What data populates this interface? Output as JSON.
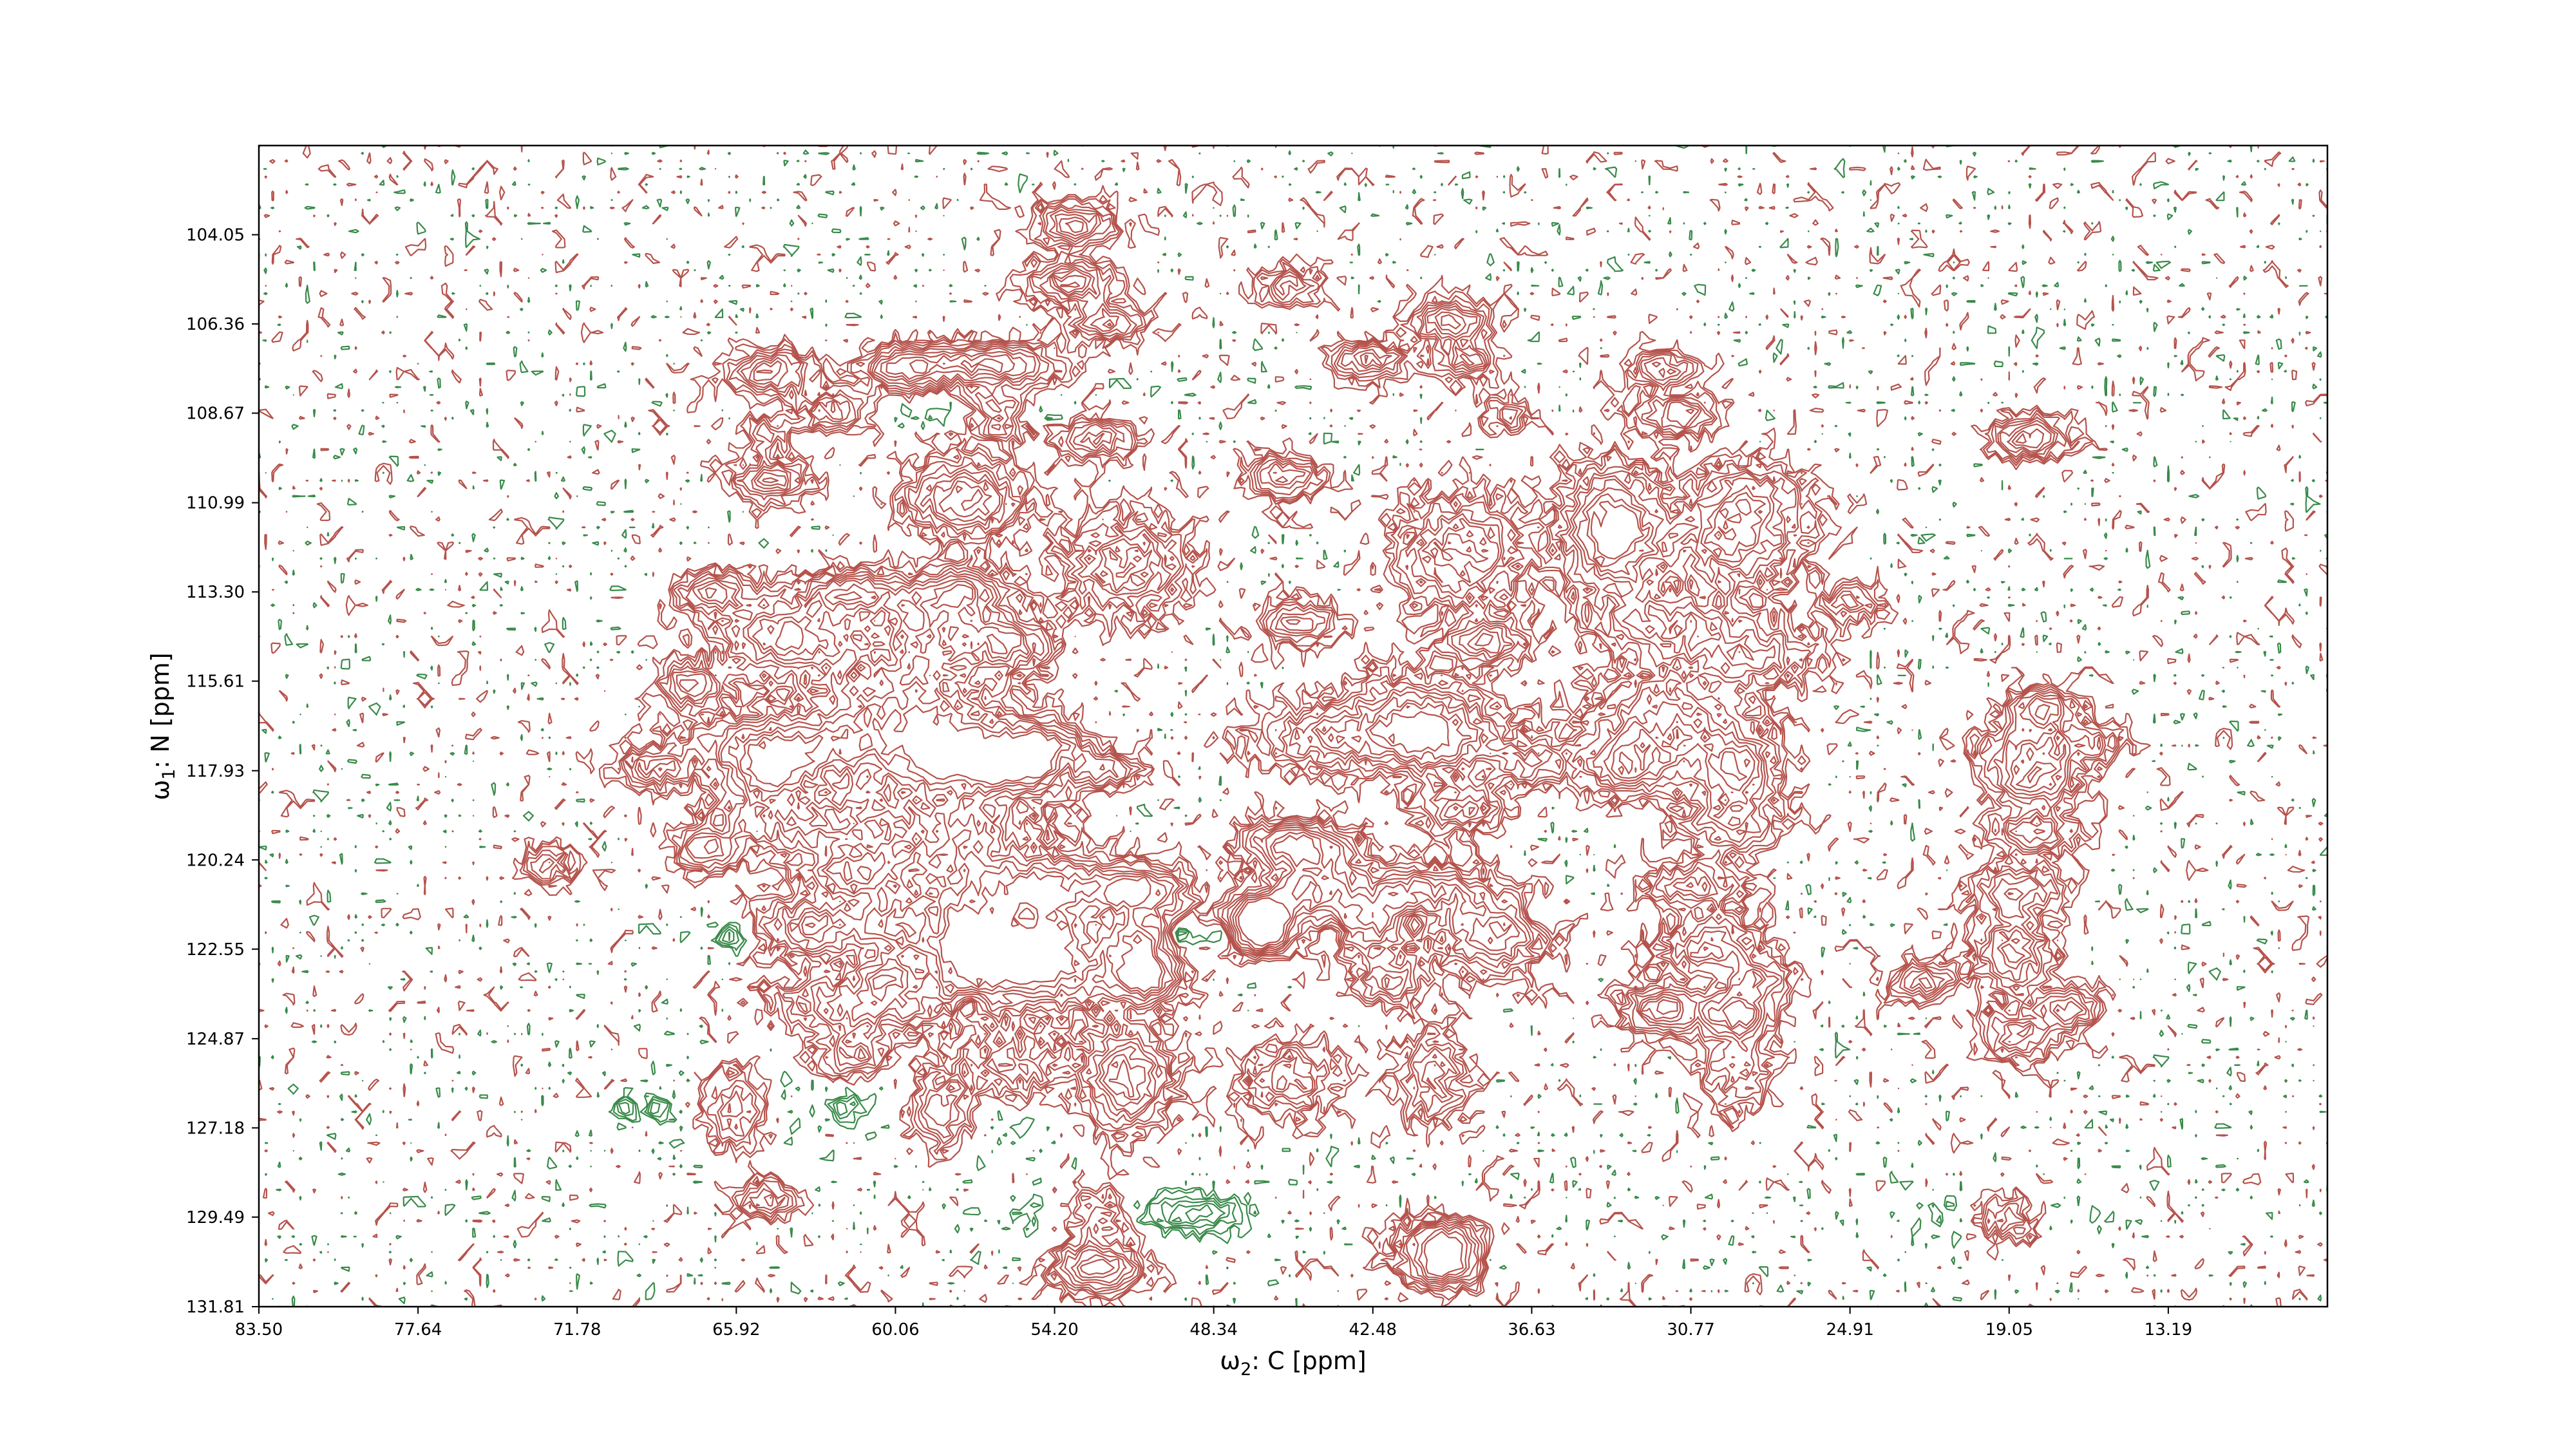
{
  "chart_data": {
    "type": "contour",
    "title": "",
    "xlabel_symbol": "ω",
    "xlabel_sub": "2",
    "xlabel_rest": ": C [ppm]",
    "ylabel_symbol": "ω",
    "ylabel_sub": "1",
    "ylabel_rest": ": N [ppm]",
    "xlim": [
      83.5,
      7.33
    ],
    "ylim": [
      131.81,
      101.74
    ],
    "x_ticks": [
      "83.50",
      "77.64",
      "71.78",
      "65.92",
      "60.06",
      "54.20",
      "48.34",
      "42.48",
      "36.63",
      "30.77",
      "24.91",
      "19.05",
      "13.19"
    ],
    "y_ticks": [
      "104.05",
      "106.36",
      "108.67",
      "110.99",
      "113.30",
      "115.61",
      "117.93",
      "120.24",
      "122.55",
      "124.87",
      "127.18",
      "129.49",
      "131.81"
    ],
    "colors": {
      "positive": "#b5534c",
      "negative": "#3a8a4a"
    },
    "peaks": [
      {
        "x": 53.4,
        "y": 103.8,
        "amp": 1.0,
        "sx": 0.9,
        "sy": 0.35
      },
      {
        "x": 53.6,
        "y": 105.3,
        "amp": 1.1,
        "sx": 1.0,
        "sy": 0.35
      },
      {
        "x": 52.2,
        "y": 106.3,
        "amp": 0.9,
        "sx": 0.8,
        "sy": 0.3
      },
      {
        "x": 39.6,
        "y": 106.3,
        "amp": 1.0,
        "sx": 0.9,
        "sy": 0.35
      },
      {
        "x": 45.6,
        "y": 105.4,
        "amp": 0.6,
        "sx": 0.8,
        "sy": 0.35
      },
      {
        "x": 64.6,
        "y": 107.6,
        "amp": 1.0,
        "sx": 1.0,
        "sy": 0.35
      },
      {
        "x": 59.7,
        "y": 107.5,
        "amp": 1.0,
        "sx": 1.0,
        "sy": 0.35
      },
      {
        "x": 56.6,
        "y": 107.4,
        "amp": 1.2,
        "sx": 1.6,
        "sy": 0.35
      },
      {
        "x": 42.6,
        "y": 107.3,
        "amp": 0.9,
        "sx": 0.9,
        "sy": 0.3
      },
      {
        "x": 39.1,
        "y": 107.3,
        "amp": 0.8,
        "sx": 0.8,
        "sy": 0.3
      },
      {
        "x": 31.8,
        "y": 107.5,
        "amp": 0.7,
        "sx": 0.8,
        "sy": 0.3
      },
      {
        "x": 56.3,
        "y": 108.7,
        "amp": 1.3,
        "sx": 1.0,
        "sy": 0.35
      },
      {
        "x": 56.3,
        "y": 108.7,
        "amp": -0.8,
        "sx": 1.6,
        "sy": 0.25
      },
      {
        "x": 62.4,
        "y": 108.6,
        "amp": 0.8,
        "sx": 0.9,
        "sy": 0.35
      },
      {
        "x": 52.7,
        "y": 109.3,
        "amp": 0.8,
        "sx": 1.0,
        "sy": 0.35
      },
      {
        "x": 64.8,
        "y": 109.2,
        "amp": 0.5,
        "sx": 0.6,
        "sy": 0.3
      },
      {
        "x": 31.2,
        "y": 108.7,
        "amp": 0.9,
        "sx": 0.9,
        "sy": 0.35
      },
      {
        "x": 37.6,
        "y": 108.7,
        "amp": 0.5,
        "sx": 0.6,
        "sy": 0.3
      },
      {
        "x": 18.3,
        "y": 109.3,
        "amp": 1.0,
        "sx": 0.9,
        "sy": 0.35
      },
      {
        "x": 64.6,
        "y": 110.4,
        "amp": 0.9,
        "sx": 0.9,
        "sy": 0.35
      },
      {
        "x": 57.5,
        "y": 110.9,
        "amp": 1.2,
        "sx": 1.3,
        "sy": 0.6
      },
      {
        "x": 45.8,
        "y": 110.3,
        "amp": 0.9,
        "sx": 0.9,
        "sy": 0.35
      },
      {
        "x": 39.2,
        "y": 112.3,
        "amp": 0.9,
        "sx": 1.5,
        "sy": 0.9
      },
      {
        "x": 33.6,
        "y": 111.7,
        "amp": 1.4,
        "sx": 1.1,
        "sy": 1.0
      },
      {
        "x": 29.2,
        "y": 111.9,
        "amp": 1.0,
        "sx": 1.6,
        "sy": 0.8
      },
      {
        "x": 28.6,
        "y": 110.7,
        "amp": 0.6,
        "sx": 1.2,
        "sy": 0.5
      },
      {
        "x": 51.6,
        "y": 112.6,
        "amp": 0.8,
        "sx": 1.4,
        "sy": 0.8
      },
      {
        "x": 66.8,
        "y": 113.3,
        "amp": 0.9,
        "sx": 0.9,
        "sy": 0.35
      },
      {
        "x": 61.6,
        "y": 113.3,
        "amp": 1.0,
        "sx": 1.4,
        "sy": 0.35
      },
      {
        "x": 57.7,
        "y": 113.3,
        "amp": 0.8,
        "sx": 0.9,
        "sy": 0.35
      },
      {
        "x": 64.1,
        "y": 114.4,
        "amp": 1.0,
        "sx": 1.6,
        "sy": 0.6
      },
      {
        "x": 58.2,
        "y": 114.3,
        "amp": 0.9,
        "sx": 1.8,
        "sy": 0.8
      },
      {
        "x": 55.7,
        "y": 114.7,
        "amp": 0.7,
        "sx": 0.9,
        "sy": 0.4
      },
      {
        "x": 45.2,
        "y": 114.1,
        "amp": 0.9,
        "sx": 0.9,
        "sy": 0.35
      },
      {
        "x": 38.2,
        "y": 114.6,
        "amp": 0.8,
        "sx": 1.0,
        "sy": 0.35
      },
      {
        "x": 31.7,
        "y": 114.1,
        "amp": 0.8,
        "sx": 1.6,
        "sy": 0.6
      },
      {
        "x": 28.7,
        "y": 114.9,
        "amp": 0.7,
        "sx": 1.6,
        "sy": 0.6
      },
      {
        "x": 24.8,
        "y": 113.6,
        "amp": 0.6,
        "sx": 0.8,
        "sy": 0.3
      },
      {
        "x": 67.6,
        "y": 115.7,
        "amp": 0.9,
        "sx": 0.8,
        "sy": 0.35
      },
      {
        "x": 59.8,
        "y": 116.3,
        "amp": 0.9,
        "sx": 2.4,
        "sy": 1.0
      },
      {
        "x": 40.9,
        "y": 116.5,
        "amp": 0.8,
        "sx": 1.8,
        "sy": 0.7
      },
      {
        "x": 31.6,
        "y": 116.7,
        "amp": 0.8,
        "sx": 1.9,
        "sy": 0.8
      },
      {
        "x": 17.8,
        "y": 116.3,
        "amp": 0.9,
        "sx": 0.8,
        "sy": 0.35
      },
      {
        "x": 64.2,
        "y": 117.3,
        "amp": 1.0,
        "sx": 2.2,
        "sy": 0.5
      },
      {
        "x": 57.6,
        "y": 117.4,
        "amp": 1.0,
        "sx": 2.0,
        "sy": 0.6
      },
      {
        "x": 54.6,
        "y": 117.2,
        "amp": 0.9,
        "sx": 1.0,
        "sy": 0.35
      },
      {
        "x": 69.0,
        "y": 117.9,
        "amp": 0.7,
        "sx": 0.9,
        "sy": 0.35
      },
      {
        "x": 64.6,
        "y": 118.0,
        "amp": 0.9,
        "sx": 1.0,
        "sy": 0.4
      },
      {
        "x": 57.7,
        "y": 117.9,
        "amp": 1.0,
        "sx": 0.7,
        "sy": 0.35
      },
      {
        "x": 57.7,
        "y": 117.9,
        "amp": -0.8,
        "sx": 0.4,
        "sy": 0.3
      },
      {
        "x": 55.7,
        "y": 117.9,
        "amp": 1.0,
        "sx": 0.8,
        "sy": 0.35
      },
      {
        "x": 53.9,
        "y": 117.9,
        "amp": 1.0,
        "sx": 0.7,
        "sy": 0.35
      },
      {
        "x": 53.9,
        "y": 117.9,
        "amp": -0.8,
        "sx": 0.4,
        "sy": 0.3
      },
      {
        "x": 52.2,
        "y": 117.9,
        "amp": 0.7,
        "sx": 0.8,
        "sy": 0.3
      },
      {
        "x": 44.2,
        "y": 117.1,
        "amp": 0.7,
        "sx": 1.8,
        "sy": 0.5
      },
      {
        "x": 40.2,
        "y": 117.2,
        "amp": 0.8,
        "sx": 1.4,
        "sy": 0.6
      },
      {
        "x": 36.7,
        "y": 117.7,
        "amp": 0.7,
        "sx": 1.0,
        "sy": 0.4
      },
      {
        "x": 33.0,
        "y": 117.8,
        "amp": 0.9,
        "sx": 1.1,
        "sy": 0.5
      },
      {
        "x": 29.2,
        "y": 117.9,
        "amp": 1.1,
        "sx": 1.0,
        "sy": 0.6
      },
      {
        "x": 18.2,
        "y": 117.4,
        "amp": 0.8,
        "sx": 1.3,
        "sy": 0.5
      },
      {
        "x": 18.1,
        "y": 118.2,
        "amp": 0.8,
        "sx": 1.1,
        "sy": 0.4
      },
      {
        "x": 15.8,
        "y": 117.2,
        "amp": 0.5,
        "sx": 0.8,
        "sy": 0.3
      },
      {
        "x": 39.3,
        "y": 118.9,
        "amp": 0.8,
        "sx": 1.0,
        "sy": 0.4
      },
      {
        "x": 29.3,
        "y": 119.3,
        "amp": 0.7,
        "sx": 1.2,
        "sy": 0.5
      },
      {
        "x": 18.2,
        "y": 119.5,
        "amp": 0.8,
        "sx": 1.0,
        "sy": 0.4
      },
      {
        "x": 63.8,
        "y": 119.2,
        "amp": 0.8,
        "sx": 2.0,
        "sy": 0.6
      },
      {
        "x": 58.6,
        "y": 119.6,
        "amp": 0.8,
        "sx": 2.5,
        "sy": 0.9
      },
      {
        "x": 67.1,
        "y": 120.0,
        "amp": 0.8,
        "sx": 0.7,
        "sy": 0.35
      },
      {
        "x": 45.6,
        "y": 119.8,
        "amp": 1.0,
        "sx": 1.2,
        "sy": 0.35
      },
      {
        "x": 44.6,
        "y": 120.3,
        "amp": 0.7,
        "sx": 1.3,
        "sy": 0.5
      },
      {
        "x": 72.8,
        "y": 120.4,
        "amp": 0.6,
        "sx": 0.7,
        "sy": 0.35
      },
      {
        "x": 61.6,
        "y": 120.6,
        "amp": 0.9,
        "sx": 1.2,
        "sy": 0.4
      },
      {
        "x": 54.1,
        "y": 120.9,
        "amp": 1.0,
        "sx": 2.0,
        "sy": 0.5
      },
      {
        "x": 50.9,
        "y": 121.0,
        "amp": 0.9,
        "sx": 1.1,
        "sy": 0.4
      },
      {
        "x": 44.9,
        "y": 121.1,
        "amp": 0.9,
        "sx": 1.0,
        "sy": 0.4
      },
      {
        "x": 40.6,
        "y": 121.0,
        "amp": 0.9,
        "sx": 1.3,
        "sy": 0.4
      },
      {
        "x": 30.7,
        "y": 120.9,
        "amp": 0.8,
        "sx": 1.1,
        "sy": 0.4
      },
      {
        "x": 18.8,
        "y": 121.0,
        "amp": 0.8,
        "sx": 1.1,
        "sy": 0.4
      },
      {
        "x": 63.1,
        "y": 122.0,
        "amp": 1.0,
        "sx": 1.2,
        "sy": 0.5
      },
      {
        "x": 59.8,
        "y": 121.9,
        "amp": 0.9,
        "sx": 1.2,
        "sy": 0.5
      },
      {
        "x": 57.4,
        "y": 122.4,
        "amp": 1.2,
        "sx": 1.2,
        "sy": 1.0
      },
      {
        "x": 54.8,
        "y": 122.1,
        "amp": 1.1,
        "sx": 1.2,
        "sy": 0.7
      },
      {
        "x": 51.1,
        "y": 122.4,
        "amp": 1.0,
        "sx": 1.0,
        "sy": 0.7
      },
      {
        "x": 46.6,
        "y": 121.6,
        "amp": 1.3,
        "sx": 0.8,
        "sy": 0.35
      },
      {
        "x": 46.6,
        "y": 122.2,
        "amp": 1.3,
        "sx": 0.8,
        "sy": 0.35
      },
      {
        "x": 42.6,
        "y": 121.8,
        "amp": 1.0,
        "sx": 1.2,
        "sy": 0.6
      },
      {
        "x": 38.1,
        "y": 122.1,
        "amp": 1.0,
        "sx": 1.3,
        "sy": 0.7
      },
      {
        "x": 30.1,
        "y": 122.5,
        "amp": 0.9,
        "sx": 1.1,
        "sy": 0.5
      },
      {
        "x": 18.9,
        "y": 122.6,
        "amp": 1.0,
        "sx": 0.9,
        "sy": 0.7
      },
      {
        "x": 66.1,
        "y": 122.2,
        "amp": -0.6,
        "sx": 0.3,
        "sy": 0.25
      },
      {
        "x": 58.6,
        "y": 121.9,
        "amp": -0.6,
        "sx": 0.3,
        "sy": 0.3
      },
      {
        "x": 55.2,
        "y": 121.9,
        "amp": -0.6,
        "sx": 0.4,
        "sy": 0.3
      },
      {
        "x": 49.5,
        "y": 122.2,
        "amp": -0.6,
        "sx": 0.4,
        "sy": 0.25
      },
      {
        "x": 48.0,
        "y": 122.2,
        "amp": -0.5,
        "sx": 0.3,
        "sy": 0.2
      },
      {
        "x": 44.0,
        "y": 122.2,
        "amp": -0.5,
        "sx": 0.3,
        "sy": 0.25
      },
      {
        "x": 41.0,
        "y": 121.9,
        "amp": -0.5,
        "sx": 0.3,
        "sy": 0.25
      },
      {
        "x": 36.4,
        "y": 121.7,
        "amp": -0.5,
        "sx": 0.3,
        "sy": 0.25
      },
      {
        "x": 22.2,
        "y": 123.4,
        "amp": 0.8,
        "sx": 0.8,
        "sy": 0.35
      },
      {
        "x": 60.5,
        "y": 123.2,
        "amp": 0.8,
        "sx": 0.7,
        "sy": 0.35
      },
      {
        "x": 54.5,
        "y": 123.2,
        "amp": 0.9,
        "sx": 2.0,
        "sy": 0.7
      },
      {
        "x": 50.8,
        "y": 123.4,
        "amp": 0.9,
        "sx": 0.8,
        "sy": 0.35
      },
      {
        "x": 41.9,
        "y": 123.4,
        "amp": 0.8,
        "sx": 0.8,
        "sy": 0.35
      },
      {
        "x": 28.3,
        "y": 123.3,
        "amp": 0.8,
        "sx": 0.8,
        "sy": 0.35
      },
      {
        "x": 61.3,
        "y": 124.0,
        "amp": 0.9,
        "sx": 2.0,
        "sy": 0.5
      },
      {
        "x": 31.8,
        "y": 124.1,
        "amp": 1.2,
        "sx": 0.9,
        "sy": 0.4
      },
      {
        "x": 29.1,
        "y": 124.2,
        "amp": 1.2,
        "sx": 0.9,
        "sy": 0.4
      },
      {
        "x": 16.9,
        "y": 124.1,
        "amp": 0.9,
        "sx": 0.8,
        "sy": 0.35
      },
      {
        "x": 57.3,
        "y": 124.0,
        "amp": -0.6,
        "sx": 0.3,
        "sy": 0.25
      },
      {
        "x": 18.7,
        "y": 124.8,
        "amp": 0.8,
        "sx": 1.0,
        "sy": 0.4
      },
      {
        "x": 61.6,
        "y": 125.3,
        "amp": 0.8,
        "sx": 0.8,
        "sy": 0.35
      },
      {
        "x": 55.6,
        "y": 125.6,
        "amp": 1.4,
        "sx": 1.5,
        "sy": 0.7
      },
      {
        "x": 51.5,
        "y": 125.9,
        "amp": 1.2,
        "sx": 1.0,
        "sy": 0.8
      },
      {
        "x": 45.5,
        "y": 125.9,
        "amp": 0.7,
        "sx": 1.1,
        "sy": 0.6
      },
      {
        "x": 40.3,
        "y": 125.9,
        "amp": 1.5,
        "sx": 1.0,
        "sy": 0.8
      },
      {
        "x": 29.1,
        "y": 125.6,
        "amp": 1.5,
        "sx": 1.0,
        "sy": 0.7
      },
      {
        "x": 55.6,
        "y": 125.6,
        "amp": -0.9,
        "sx": 1.6,
        "sy": 0.8
      },
      {
        "x": 40.3,
        "y": 125.9,
        "amp": -0.9,
        "sx": 1.1,
        "sy": 0.8
      },
      {
        "x": 29.1,
        "y": 125.6,
        "amp": -0.9,
        "sx": 1.1,
        "sy": 0.7
      },
      {
        "x": 66.0,
        "y": 126.7,
        "amp": 1.5,
        "sx": 1.0,
        "sy": 0.8
      },
      {
        "x": 58.4,
        "y": 126.7,
        "amp": 1.5,
        "sx": 1.0,
        "sy": 0.8
      },
      {
        "x": 66.0,
        "y": 126.7,
        "amp": -0.9,
        "sx": 1.2,
        "sy": 0.9
      },
      {
        "x": 58.4,
        "y": 126.7,
        "amp": -0.9,
        "sx": 1.2,
        "sy": 0.9
      },
      {
        "x": 70.0,
        "y": 126.7,
        "amp": -0.5,
        "sx": 0.3,
        "sy": 0.2
      },
      {
        "x": 68.8,
        "y": 126.7,
        "amp": -0.5,
        "sx": 0.3,
        "sy": 0.2
      },
      {
        "x": 61.9,
        "y": 126.7,
        "amp": -0.6,
        "sx": 0.3,
        "sy": 0.25
      },
      {
        "x": 64.9,
        "y": 129.0,
        "amp": 0.8,
        "sx": 0.7,
        "sy": 0.3
      },
      {
        "x": 52.6,
        "y": 129.4,
        "amp": 1.3,
        "sx": 1.2,
        "sy": 0.4
      },
      {
        "x": 52.6,
        "y": 130.8,
        "amp": 1.3,
        "sx": 1.0,
        "sy": 0.4
      },
      {
        "x": 52.6,
        "y": 129.4,
        "amp": -0.9,
        "sx": 1.7,
        "sy": 0.35
      },
      {
        "x": 49.0,
        "y": 129.4,
        "amp": -0.8,
        "sx": 1.0,
        "sy": 0.3
      },
      {
        "x": 39.9,
        "y": 130.1,
        "amp": 1.2,
        "sx": 1.0,
        "sy": 0.35
      },
      {
        "x": 39.9,
        "y": 130.8,
        "amp": 1.2,
        "sx": 1.0,
        "sy": 0.35
      },
      {
        "x": 19.2,
        "y": 129.5,
        "amp": 1.4,
        "sx": 1.1,
        "sy": 0.4
      },
      {
        "x": 19.2,
        "y": 129.5,
        "amp": -0.9,
        "sx": 1.5,
        "sy": 0.4
      },
      {
        "x": 38.0,
        "y": 130.7,
        "amp": -0.4,
        "sx": 0.3,
        "sy": 0.25
      }
    ]
  }
}
